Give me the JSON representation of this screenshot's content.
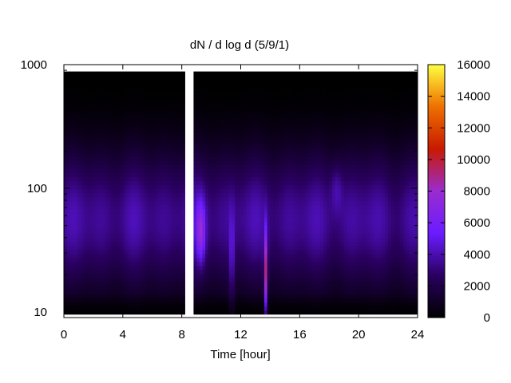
{
  "chart_data": {
    "type": "heatmap",
    "title": "dN / d log d (5/9/1)",
    "xlabel": "Time [hour]",
    "ylabel": "",
    "xlim": [
      0,
      24
    ],
    "ylim": [
      9,
      1000
    ],
    "y_scale": "log",
    "x_ticks": [
      0,
      4,
      8,
      12,
      16,
      20,
      24
    ],
    "x_tick_labels": [
      "0",
      "4",
      "8",
      "12",
      "16",
      "20",
      "24"
    ],
    "y_ticks": [
      10,
      100,
      1000
    ],
    "y_tick_labels": [
      "10",
      "100",
      "1000"
    ],
    "colorbar": {
      "min": 0,
      "max": 16000,
      "ticks": [
        0,
        2000,
        4000,
        6000,
        8000,
        10000,
        12000,
        14000,
        16000
      ],
      "tick_labels": [
        "0",
        "2000",
        "4000",
        "6000",
        "8000",
        "10000",
        "12000",
        "14000",
        "16000"
      ],
      "colormap": "gnuplot-pm3d-purple-red-yellow",
      "colors": [
        "#000000",
        "#2a0060",
        "#6a1cff",
        "#9a2cd0",
        "#c81a00",
        "#ee7000",
        "#ffff40"
      ]
    },
    "data_gap_hours": [
      8.1,
      8.8
    ],
    "grid": false,
    "legend": "none"
  }
}
